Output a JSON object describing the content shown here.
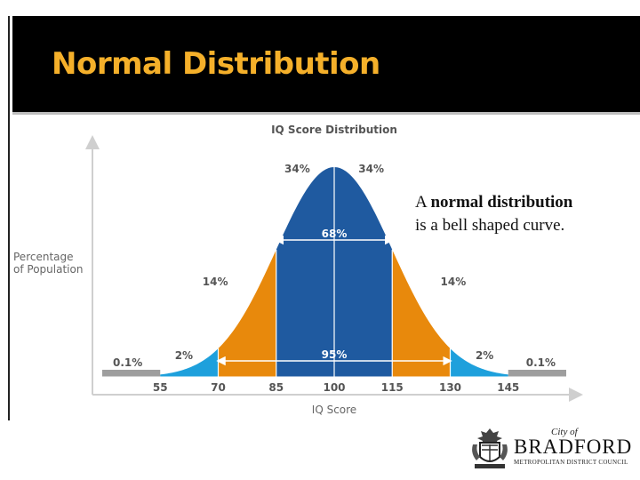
{
  "slide": {
    "title": "Normal Distribution",
    "callout_bold": "normal distribution",
    "callout_prefix": "A ",
    "callout_line2": "is a bell shaped curve.",
    "title_color": "#f5b02a",
    "title_bar_color": "#000000"
  },
  "chart_data": {
    "type": "area",
    "title": "IQ Score Distribution",
    "xlabel": "IQ Score",
    "ylabel": "Percentage of Population",
    "xlim": [
      40,
      160
    ],
    "x_ticks": [
      55,
      70,
      85,
      100,
      115,
      130,
      145
    ],
    "distribution": {
      "mean": 100,
      "sd": 15
    },
    "regions": [
      {
        "from": 40,
        "to": 55,
        "percent": "0.1%",
        "color": "#9e9e9e"
      },
      {
        "from": 55,
        "to": 70,
        "percent": "2%",
        "color": "#1ea0dc"
      },
      {
        "from": 70,
        "to": 85,
        "percent": "14%",
        "color": "#e8890c"
      },
      {
        "from": 85,
        "to": 100,
        "percent": "34%",
        "color": "#1f5aa0"
      },
      {
        "from": 100,
        "to": 115,
        "percent": "34%",
        "color": "#1f5aa0"
      },
      {
        "from": 115,
        "to": 130,
        "percent": "14%",
        "color": "#e8890c"
      },
      {
        "from": 130,
        "to": 145,
        "percent": "2%",
        "color": "#1ea0dc"
      },
      {
        "from": 145,
        "to": 160,
        "percent": "0.1%",
        "color": "#9e9e9e"
      }
    ],
    "spans": [
      {
        "from": 85,
        "to": 115,
        "label": "68%"
      },
      {
        "from": 70,
        "to": 130,
        "label": "95%"
      }
    ],
    "grid": false,
    "legend": "none"
  },
  "logo": {
    "city": "City of",
    "name": "BRADFORD",
    "subtitle": "METROPOLITAN DISTRICT COUNCIL"
  }
}
